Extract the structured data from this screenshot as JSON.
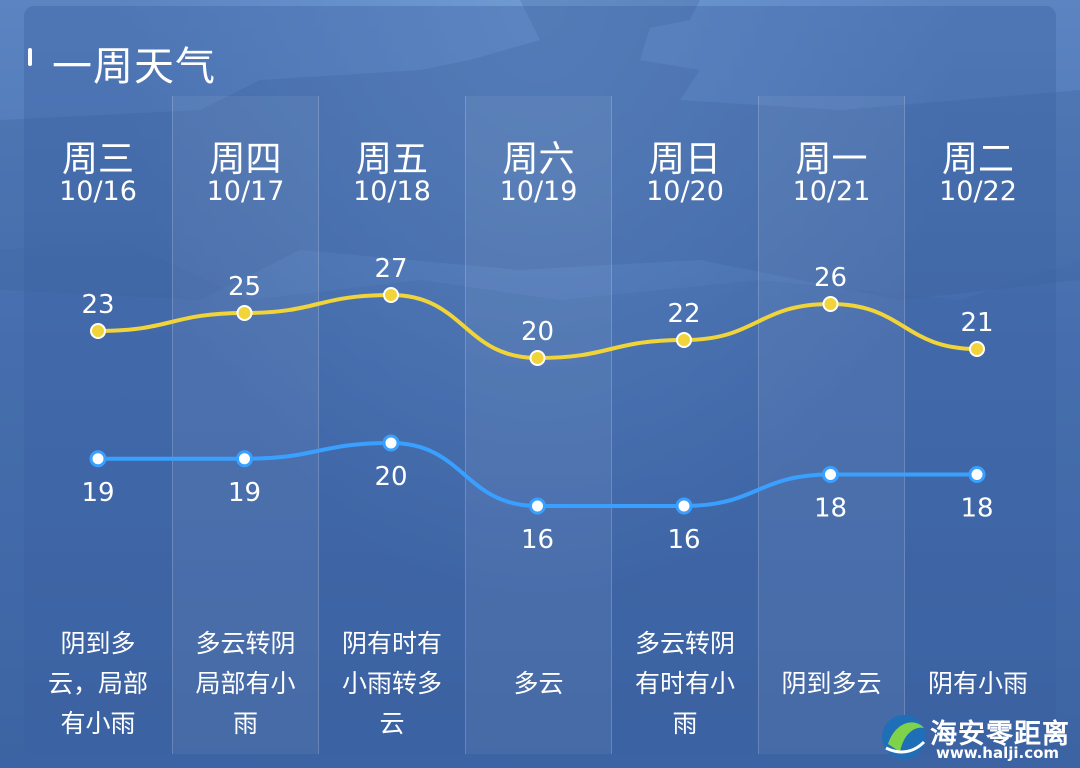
{
  "title": "一周天气",
  "days": [
    {
      "day": "周三",
      "date": "10/16",
      "high": 23,
      "low": 19,
      "desc": [
        "阴到多",
        "云，局部",
        "有小雨"
      ]
    },
    {
      "day": "周四",
      "date": "10/17",
      "high": 25,
      "low": 19,
      "desc": [
        "多云转阴",
        "局部有小",
        "雨"
      ]
    },
    {
      "day": "周五",
      "date": "10/18",
      "high": 27,
      "low": 20,
      "desc": [
        "阴有时有",
        "小雨转多",
        "云"
      ]
    },
    {
      "day": "周六",
      "date": "10/19",
      "high": 20,
      "low": 16,
      "desc": [
        "多云"
      ]
    },
    {
      "day": "周日",
      "date": "10/20",
      "high": 22,
      "low": 16,
      "desc": [
        "多云转阴",
        "有时有小",
        "雨"
      ]
    },
    {
      "day": "周一",
      "date": "10/21",
      "high": 26,
      "low": 18,
      "desc": [
        "阴到多云"
      ]
    },
    {
      "day": "周二",
      "date": "10/22",
      "high": 21,
      "low": 18,
      "desc": [
        "阴有小雨"
      ]
    }
  ],
  "colors": {
    "high": "#f0d43a",
    "low": "#3aa0ff"
  },
  "watermark": {
    "name": "海安零距离",
    "url": "www.halji.com"
  }
}
